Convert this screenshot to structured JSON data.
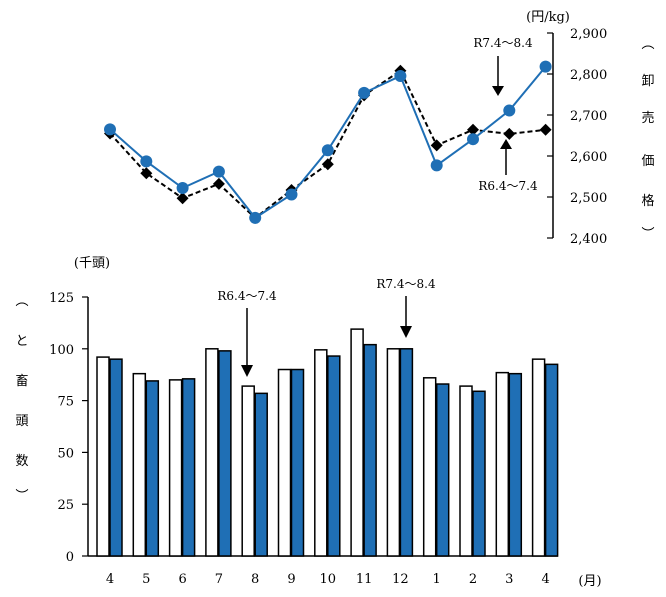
{
  "chart_data": [
    {
      "type": "line",
      "y_unit_label": "(円/kg)",
      "y_axis_title_chars": [
        "︵",
        "卸",
        "売",
        "価",
        "格",
        "︶"
      ],
      "ylim": [
        2400,
        2900
      ],
      "y_ticks": [
        "2,400",
        "2,500",
        "2,600",
        "2,700",
        "2,800",
        "2,900"
      ],
      "y_tick_values": [
        2400,
        2500,
        2600,
        2700,
        2800,
        2900
      ],
      "axis_side": "right",
      "series": [
        {
          "style": "solid",
          "marker": "circle",
          "color": "#1f6fb5",
          "values": [
            2665,
            2587,
            2522,
            2562,
            2449,
            2506,
            2614,
            2754,
            2795,
            2577,
            2641,
            2711,
            2818
          ]
        },
        {
          "style": "dashed",
          "marker": "diamond",
          "color": "#000000",
          "values": [
            2655,
            2558,
            2497,
            2532,
            2449,
            2517,
            2580,
            2748,
            2808,
            2626,
            2664,
            2654,
            2664
          ]
        }
      ],
      "annotations": [
        {
          "text": "R7.4～8.4",
          "target_series": 0
        },
        {
          "text": "R6.4～7.4",
          "target_series": 1
        }
      ]
    },
    {
      "type": "bar",
      "categories": [
        "4",
        "5",
        "6",
        "7",
        "8",
        "9",
        "10",
        "11",
        "12",
        "1",
        "2",
        "3",
        "4"
      ],
      "x_unit_label": "(月)",
      "y_unit_label": "(千頭)",
      "y_axis_title_chars": [
        "︵",
        "と",
        "畜",
        "頭",
        "数",
        "︶"
      ],
      "ylim": [
        0,
        125
      ],
      "y_ticks": [
        "0",
        "25",
        "50",
        "75",
        "100",
        "125"
      ],
      "y_tick_values": [
        0,
        25,
        50,
        75,
        100,
        125
      ],
      "series": [
        {
          "fill": "#ffffff",
          "stroke": "#000000",
          "values": [
            96,
            88,
            85,
            100,
            82,
            90,
            99.5,
            109.5,
            100,
            86,
            82,
            88.5,
            95
          ]
        },
        {
          "fill": "#1f6fb5",
          "stroke": "#000000",
          "values": [
            95,
            84.5,
            85.5,
            99,
            78.5,
            90,
            96.5,
            102,
            100,
            83,
            79.5,
            88,
            92.5
          ]
        }
      ],
      "annotations": [
        {
          "text": "R6.4～7.4",
          "target_series": 1,
          "target_index": 4
        },
        {
          "text": "R7.4～8.4",
          "target_series": 1,
          "target_index": 8
        }
      ]
    }
  ]
}
